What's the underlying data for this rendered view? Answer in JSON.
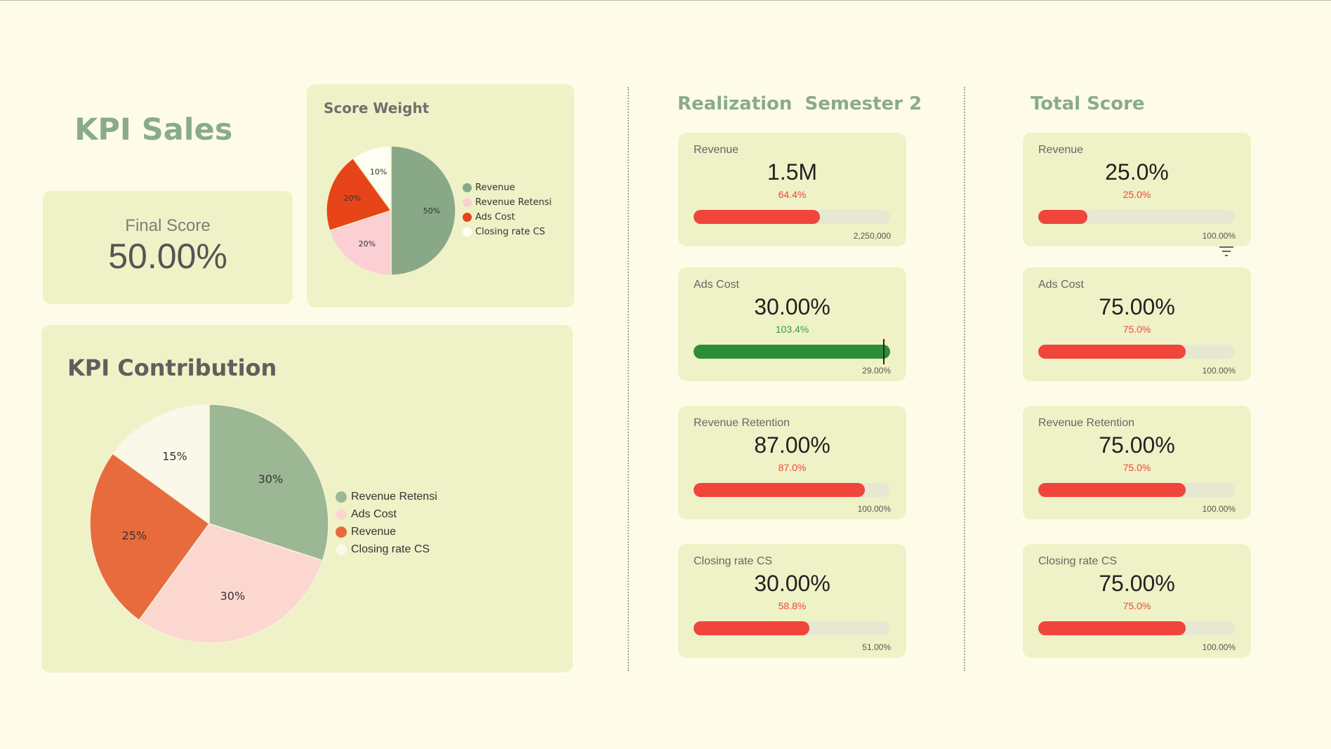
{
  "page": {
    "title": "KPI Sales"
  },
  "final_score": {
    "label": "Final Score",
    "value": "50.00%"
  },
  "score_weight": {
    "title": "Score Weight",
    "legend": [
      {
        "name": "Revenue",
        "color": "#88a888"
      },
      {
        "name": "Revenue Retensi",
        "color": "#fbcfd3"
      },
      {
        "name": "Ads Cost",
        "color": "#e74519"
      },
      {
        "name": "Closing rate CS",
        "color": "#fffef2"
      }
    ]
  },
  "kpi_contribution": {
    "title": "KPI Contribution",
    "legend": [
      {
        "name": "Revenue Retensi",
        "color": "#9bb793"
      },
      {
        "name": "Ads Cost",
        "color": "#fcd7d0"
      },
      {
        "name": "Revenue",
        "color": "#e86b3d"
      },
      {
        "name": "Closing rate CS",
        "color": "#faf8e8"
      }
    ]
  },
  "realization": {
    "title": "Realization  Semester 2",
    "cards": [
      {
        "label": "Revenue",
        "value": "1.5M",
        "pct": "64.4%",
        "pct_color": "#f0453a",
        "progress": 0.644,
        "bar_color": "#f0453a",
        "target": "2,250,000",
        "marker": false
      },
      {
        "label": "Ads Cost",
        "value": "30.00%",
        "pct": "103.4%",
        "pct_color": "#3a9a3a",
        "progress": 1.0,
        "bar_color": "#2e8b36",
        "target": "29.00%",
        "marker": true
      },
      {
        "label": "Revenue Retention",
        "value": "87.00%",
        "pct": "87.0%",
        "pct_color": "#f0453a",
        "progress": 0.87,
        "bar_color": "#f0453a",
        "target": "100.00%",
        "marker": false
      },
      {
        "label": "Closing rate CS",
        "value": "30.00%",
        "pct": "58.8%",
        "pct_color": "#f0453a",
        "progress": 0.588,
        "bar_color": "#f0453a",
        "target": "51.00%",
        "marker": false
      }
    ]
  },
  "total_score": {
    "title": "Total Score",
    "cards": [
      {
        "label": "Revenue",
        "value": "25.0%",
        "pct": "25.0%",
        "pct_color": "#f0453a",
        "progress": 0.25,
        "bar_color": "#f0453a",
        "target": "100.00%"
      },
      {
        "label": "Ads Cost",
        "value": "75.00%",
        "pct": "75.0%",
        "pct_color": "#f0453a",
        "progress": 0.75,
        "bar_color": "#f0453a",
        "target": "100.00%"
      },
      {
        "label": "Revenue Retention",
        "value": "75.00%",
        "pct": "75.0%",
        "pct_color": "#f0453a",
        "progress": 0.75,
        "bar_color": "#f0453a",
        "target": "100.00%"
      },
      {
        "label": "Closing rate CS",
        "value": "75.00%",
        "pct": "75.0%",
        "pct_color": "#f0453a",
        "progress": 0.75,
        "bar_color": "#f0453a",
        "target": "100.00%"
      }
    ]
  },
  "chart_data": [
    {
      "type": "pie",
      "title": "Score Weight",
      "categories": [
        "Revenue",
        "Revenue Retensi",
        "Ads Cost",
        "Closing rate CS"
      ],
      "values": [
        50,
        20,
        20,
        10
      ],
      "labels": [
        "50%",
        "20%",
        "20%",
        "10%"
      ],
      "colors": [
        "#88a888",
        "#fbcfd3",
        "#e74519",
        "#fffef2"
      ],
      "legend": "right"
    },
    {
      "type": "pie",
      "title": "KPI Contribution",
      "categories": [
        "Revenue Retensi",
        "Ads Cost",
        "Revenue",
        "Closing rate CS"
      ],
      "values": [
        30,
        30,
        25,
        15
      ],
      "labels": [
        "30%",
        "30%",
        "25%",
        "15%"
      ],
      "colors": [
        "#9bb793",
        "#fcd7d0",
        "#e86b3d",
        "#faf8e8"
      ],
      "legend": "right"
    }
  ]
}
